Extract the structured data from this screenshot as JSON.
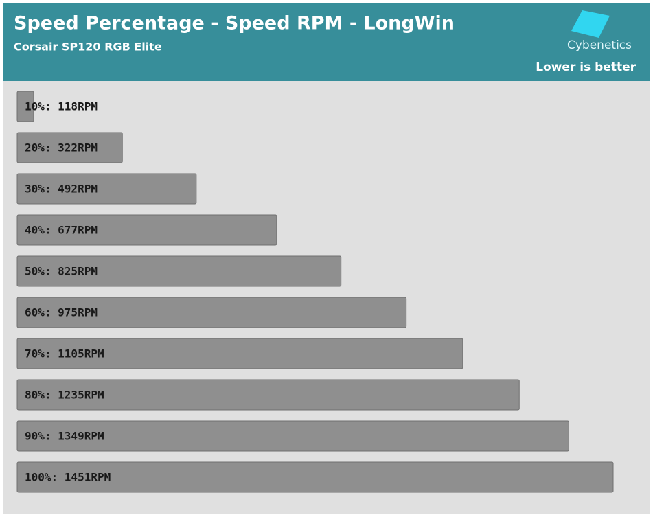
{
  "chart_data": {
    "type": "bar",
    "orientation": "horizontal",
    "title": "Speed Percentage - Speed RPM - LongWin",
    "subtitle": "Corsair SP120 RGB Elite",
    "logo": "Cybenetics",
    "note": "Lower is better",
    "categories": [
      "10%: 118RPM",
      "20%: 322RPM",
      "30%: 492RPM",
      "40%: 677RPM",
      "50%: 825RPM",
      "60%: 975RPM",
      "70%: 1105RPM",
      "80%: 1235RPM",
      "90%: 1349RPM",
      "100%: 1451RPM"
    ],
    "values": [
      118,
      322,
      492,
      677,
      825,
      975,
      1105,
      1235,
      1349,
      1451
    ],
    "color": "#8f8f8f",
    "xlim": [
      80,
      1451
    ]
  }
}
